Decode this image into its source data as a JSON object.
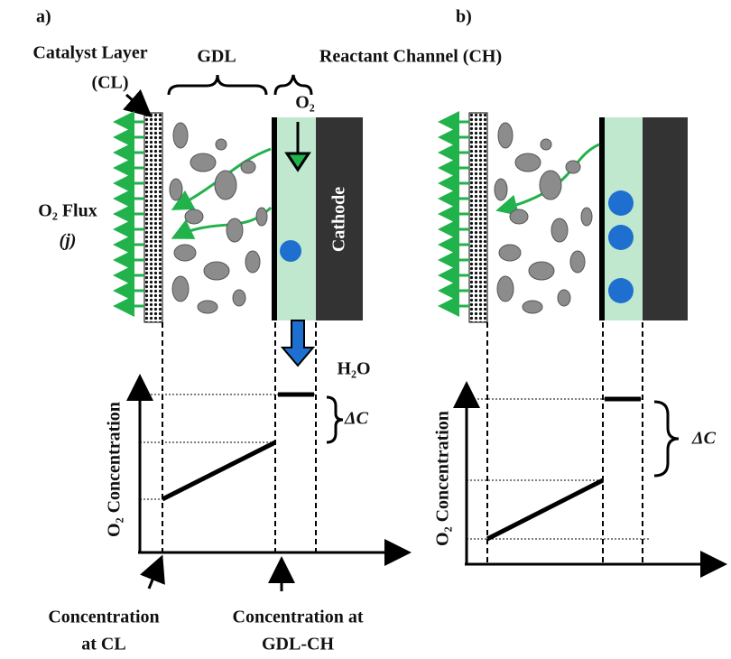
{
  "panel_a": {
    "label": "a)",
    "catalyst_layer": [
      "Catalyst Layer",
      "(CL)"
    ],
    "gdl": "GDL",
    "channel": "Reactant Channel (CH)",
    "o2": "O₂",
    "cathode": "Cathode",
    "flux": [
      "O₂ Flux",
      "(j)"
    ],
    "water": "H₂O",
    "y_axis": "O₂ Concentration",
    "delta": "ΔC",
    "label_cl": [
      "Concentration",
      "at CL"
    ],
    "label_gdl_ch": [
      "Concentration at",
      "GDL-CH"
    ]
  },
  "panel_b": {
    "label": "b)",
    "y_axis": "O₂ Concentration",
    "delta": "ΔC"
  }
}
